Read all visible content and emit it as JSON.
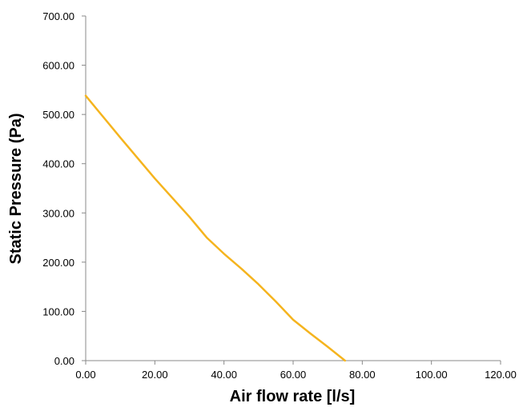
{
  "chart_data": {
    "type": "line",
    "title": "",
    "xlabel": "Air flow rate [l/s]",
    "ylabel": "Static Pressure (Pa)",
    "xlim": [
      0,
      120
    ],
    "ylim": [
      0,
      700
    ],
    "x_ticks": [
      "0.00",
      "20.00",
      "40.00",
      "60.00",
      "80.00",
      "100.00",
      "120.00"
    ],
    "y_ticks": [
      "0.00",
      "100.00",
      "200.00",
      "300.00",
      "400.00",
      "500.00",
      "600.00",
      "700.00"
    ],
    "grid": false,
    "line_color": "#f5b41e",
    "series": [
      {
        "x": [
          0,
          10,
          20,
          30,
          35,
          40,
          45,
          50,
          55,
          60,
          65,
          70,
          75
        ],
        "y": [
          538,
          453,
          370,
          292,
          250,
          217,
          187,
          155,
          120,
          83,
          55,
          28,
          0
        ]
      }
    ]
  }
}
